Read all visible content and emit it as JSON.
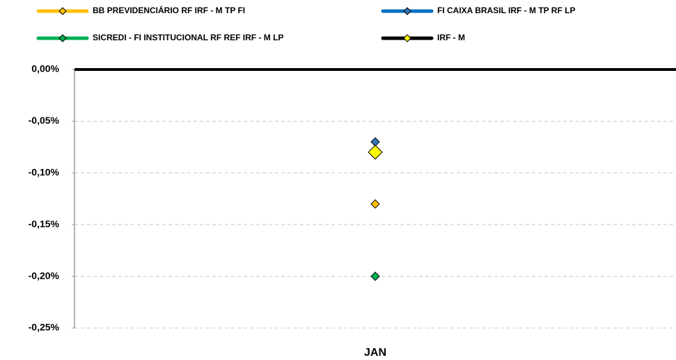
{
  "chart_data": {
    "type": "line",
    "categories": [
      "JAN"
    ],
    "series": [
      {
        "name": "BB PREVIDENCIÁRIO RF IRF - M TP FI",
        "color": "#FFC000",
        "marker_color": "#FFC000",
        "values": [
          -0.13
        ]
      },
      {
        "name": "FI CAIXA BRASIL IRF - M TP RF LP",
        "color": "#0070C0",
        "marker_color": "#2E75B6",
        "values": [
          -0.07
        ]
      },
      {
        "name": "SICREDI - FI INSTITUCIONAL RF REF IRF - M LP",
        "color": "#00B050",
        "marker_color": "#00B050",
        "values": [
          -0.2
        ]
      },
      {
        "name": "IRF - M",
        "color": "#000000",
        "marker_color": "#FFFF00",
        "values": [
          -0.08
        ]
      }
    ],
    "ylim": [
      -0.25,
      0
    ],
    "yticks": [
      {
        "value": 0,
        "label": "0,00%"
      },
      {
        "value": -0.05,
        "label": "-0,05%"
      },
      {
        "value": -0.1,
        "label": "-0,10%"
      },
      {
        "value": -0.15,
        "label": "-0,15%"
      },
      {
        "value": -0.2,
        "label": "-0,20%"
      },
      {
        "value": -0.25,
        "label": "-0,25%"
      }
    ],
    "grid": true
  }
}
